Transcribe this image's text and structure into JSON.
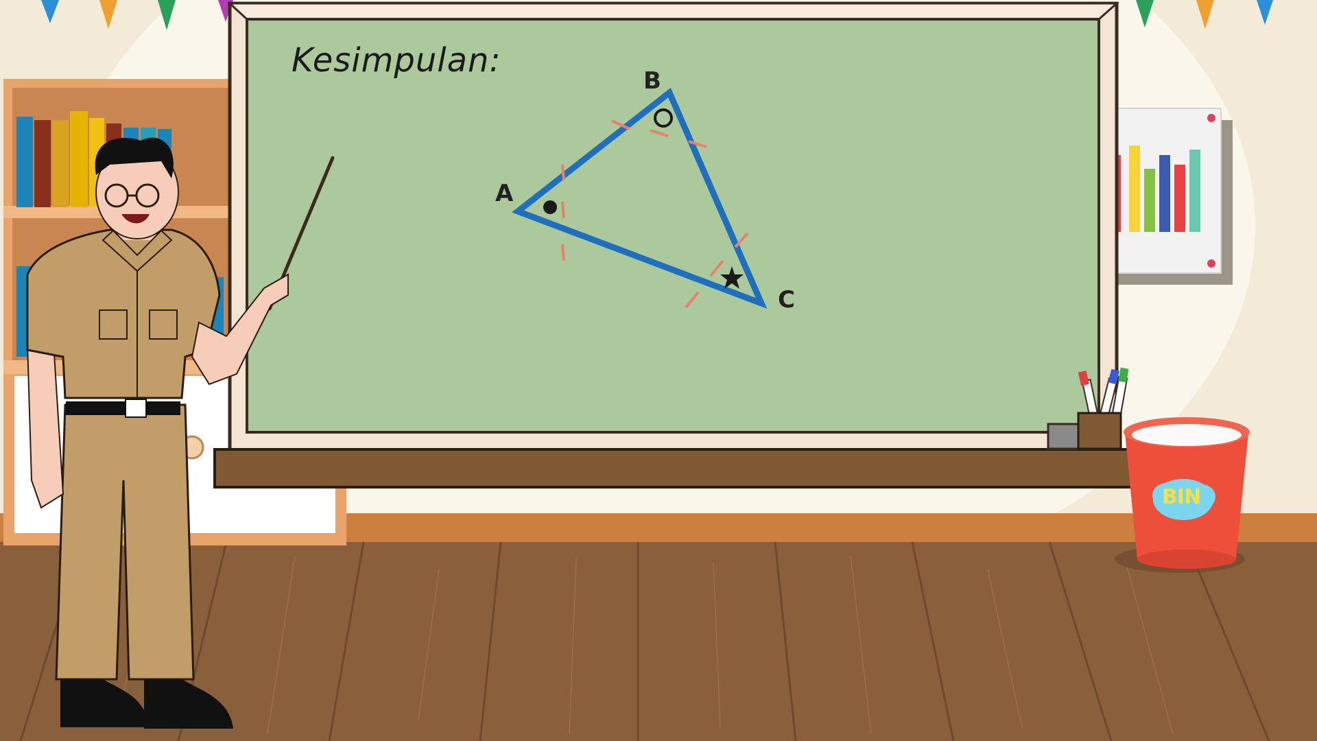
{
  "board": {
    "title": "Kesimpulan:"
  },
  "triangle": {
    "vertex_labels": {
      "a": "A",
      "b": "B",
      "c": "C"
    },
    "angle_markers": {
      "a": "filled-dot",
      "b": "hollow-circle",
      "c": "star"
    }
  },
  "bin": {
    "label": "BIN"
  },
  "colors": {
    "board": "#abc99a",
    "frame": "#f4e4d4",
    "triangle": "#1f6fbf",
    "tick": "#e8826a",
    "floor": "#8a5f3c",
    "wall": "#f3ead8",
    "bin": "#ee4f3b"
  },
  "decor": {
    "bunting_colors": [
      "#2d8fd8",
      "#f0a030",
      "#2ba05a",
      "#b040b0"
    ],
    "books": [
      "#1c84b8",
      "#8a2e1e",
      "#d8a420",
      "#e6b400",
      "#f2c010",
      "#23a0b8"
    ],
    "poster_bars": [
      "#e84040",
      "#f6d43a",
      "#86c048",
      "#3a5bb0",
      "#e84040",
      "#6ac8b0"
    ]
  }
}
